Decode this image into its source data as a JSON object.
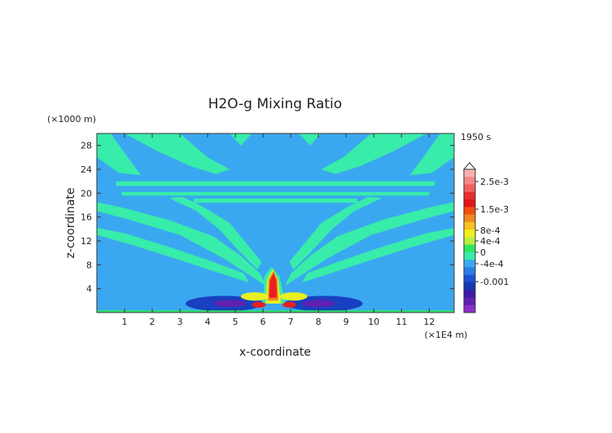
{
  "chart_data": {
    "type": "heatmap",
    "title": "H2O-g Mixing Ratio",
    "time_label": "1950 s",
    "xlabel": "x-coordinate",
    "ylabel": "z-coordinate",
    "x_unit": "(×1E4 m)",
    "y_unit": "(×1000 m)",
    "xlim": [
      0,
      12.9
    ],
    "ylim": [
      0,
      30
    ],
    "x_ticks": [
      1,
      2,
      3,
      4,
      5,
      6,
      7,
      8,
      9,
      10,
      11,
      12
    ],
    "y_ticks": [
      4,
      8,
      12,
      16,
      20,
      24,
      28
    ],
    "colorbar_labels": [
      "2.5e-3",
      "1.5e-3",
      "8e-4",
      "4e-4",
      "0",
      "-4e-4",
      "-0.001"
    ],
    "colors": {
      "background_field": "#3aa8f0",
      "plume": "#38ecaa",
      "yellow": "#e8f020",
      "orange": "#f08020",
      "red": "#e82020",
      "deep_blue": "#1840c0",
      "purple": "#6020b0",
      "bottom_band": "#30e860"
    }
  }
}
